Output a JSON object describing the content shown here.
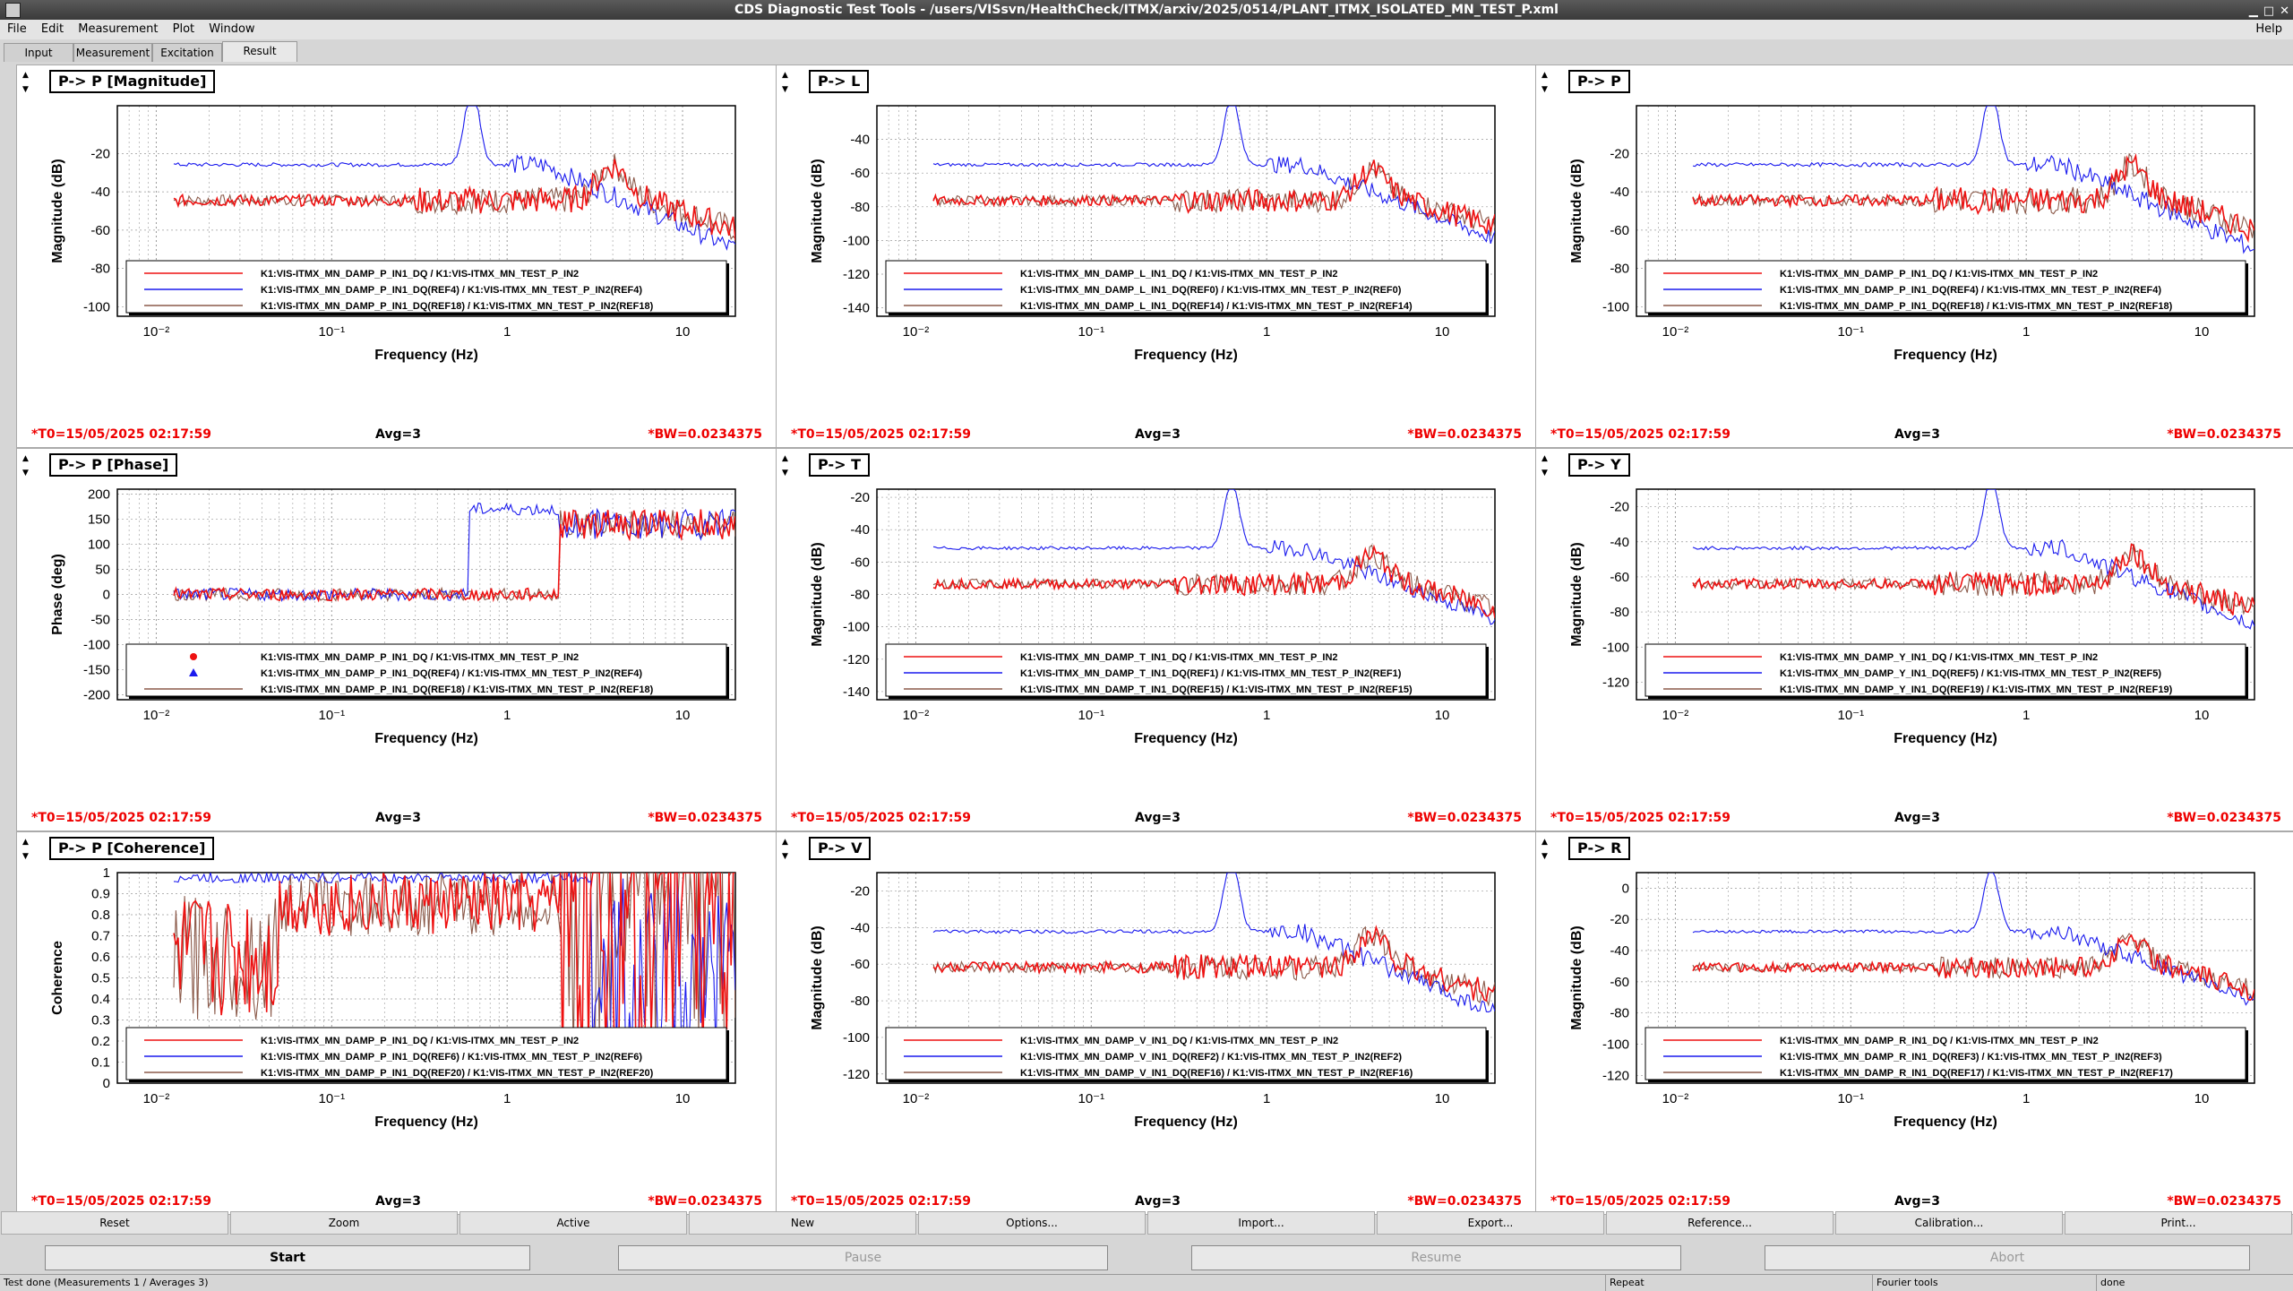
{
  "window": {
    "title": "CDS Diagnostic Test Tools - /users/VISsvn/HealthCheck/ITMX/arxiv/2025/0514/PLANT_ITMX_ISOLATED_MN_TEST_P.xml"
  },
  "menu": {
    "file": "File",
    "edit": "Edit",
    "measurement": "Measurement",
    "plot": "Plot",
    "window": "Window",
    "help": "Help"
  },
  "tabs": {
    "input": "Input",
    "measurement": "Measurement",
    "excitation": "Excitation",
    "result": "Result",
    "active": "Result"
  },
  "footer": {
    "t0": "*T0=15/05/2025 02:17:59",
    "avg": "Avg=3",
    "bw": "*BW=0.0234375"
  },
  "common": {
    "xlabel": "Frequency (Hz)",
    "xticks": [
      "10⁻²",
      "10⁻¹",
      "1",
      "10"
    ]
  },
  "colors": {
    "primary": "#ee1111",
    "reference_a": "#1a1aee",
    "reference_b": "#8b5a4a"
  },
  "panels": [
    {
      "title": "P-> P [Magnitude]",
      "ylabel": "Magnitude (dB)",
      "ylim": [
        -105,
        5
      ],
      "yticks": [
        "-20",
        "-40",
        "-60",
        "-80",
        "-100"
      ],
      "legend": [
        "K1:VIS-ITMX_MN_DAMP_P_IN1_DQ / K1:VIS-ITMX_MN_TEST_P_IN2",
        "K1:VIS-ITMX_MN_DAMP_P_IN1_DQ(REF4) / K1:VIS-ITMX_MN_TEST_P_IN2(REF4)",
        "K1:VIS-ITMX_MN_DAMP_P_IN1_DQ(REF18) / K1:VIS-ITMX_MN_TEST_P_IN2(REF18)"
      ]
    },
    {
      "title": "P-> L",
      "ylabel": "Magnitude (dB)",
      "ylim": [
        -145,
        -20
      ],
      "yticks": [
        "-40",
        "-60",
        "-80",
        "-100",
        "-120",
        "-140"
      ],
      "legend": [
        "K1:VIS-ITMX_MN_DAMP_L_IN1_DQ / K1:VIS-ITMX_MN_TEST_P_IN2",
        "K1:VIS-ITMX_MN_DAMP_L_IN1_DQ(REF0) / K1:VIS-ITMX_MN_TEST_P_IN2(REF0)",
        "K1:VIS-ITMX_MN_DAMP_L_IN1_DQ(REF14) / K1:VIS-ITMX_MN_TEST_P_IN2(REF14)"
      ]
    },
    {
      "title": "P-> P",
      "ylabel": "Magnitude (dB)",
      "ylim": [
        -105,
        5
      ],
      "yticks": [
        "-20",
        "-40",
        "-60",
        "-80",
        "-100"
      ],
      "legend": [
        "K1:VIS-ITMX_MN_DAMP_P_IN1_DQ / K1:VIS-ITMX_MN_TEST_P_IN2",
        "K1:VIS-ITMX_MN_DAMP_P_IN1_DQ(REF4) / K1:VIS-ITMX_MN_TEST_P_IN2(REF4)",
        "K1:VIS-ITMX_MN_DAMP_P_IN1_DQ(REF18) / K1:VIS-ITMX_MN_TEST_P_IN2(REF18)"
      ]
    },
    {
      "title": "P-> P [Phase]",
      "ylabel": "Phase (deg)",
      "ylim": [
        -210,
        210
      ],
      "yticks": [
        "200",
        "150",
        "100",
        "50",
        "0",
        "-50",
        "-100",
        "-150",
        "-200"
      ],
      "legend": [
        "K1:VIS-ITMX_MN_DAMP_P_IN1_DQ / K1:VIS-ITMX_MN_TEST_P_IN2",
        "K1:VIS-ITMX_MN_DAMP_P_IN1_DQ(REF4) / K1:VIS-ITMX_MN_TEST_P_IN2(REF4)",
        "K1:VIS-ITMX_MN_DAMP_P_IN1_DQ(REF18) / K1:VIS-ITMX_MN_TEST_P_IN2(REF18)"
      ]
    },
    {
      "title": "P-> T",
      "ylabel": "Magnitude (dB)",
      "ylim": [
        -145,
        -15
      ],
      "yticks": [
        "-20",
        "-40",
        "-60",
        "-80",
        "-100",
        "-120",
        "-140"
      ],
      "legend": [
        "K1:VIS-ITMX_MN_DAMP_T_IN1_DQ / K1:VIS-ITMX_MN_TEST_P_IN2",
        "K1:VIS-ITMX_MN_DAMP_T_IN1_DQ(REF1) / K1:VIS-ITMX_MN_TEST_P_IN2(REF1)",
        "K1:VIS-ITMX_MN_DAMP_T_IN1_DQ(REF15) / K1:VIS-ITMX_MN_TEST_P_IN2(REF15)"
      ]
    },
    {
      "title": "P-> Y",
      "ylabel": "Magnitude (dB)",
      "ylim": [
        -130,
        -10
      ],
      "yticks": [
        "-20",
        "-40",
        "-60",
        "-80",
        "-100",
        "-120"
      ],
      "legend": [
        "K1:VIS-ITMX_MN_DAMP_Y_IN1_DQ / K1:VIS-ITMX_MN_TEST_P_IN2",
        "K1:VIS-ITMX_MN_DAMP_Y_IN1_DQ(REF5) / K1:VIS-ITMX_MN_TEST_P_IN2(REF5)",
        "K1:VIS-ITMX_MN_DAMP_Y_IN1_DQ(REF19) / K1:VIS-ITMX_MN_TEST_P_IN2(REF19)"
      ]
    },
    {
      "title": "P-> P [Coherence]",
      "ylabel": "Coherence",
      "ylim": [
        0,
        1
      ],
      "yticks": [
        "1",
        "0.9",
        "0.8",
        "0.7",
        "0.6",
        "0.5",
        "0.4",
        "0.3",
        "0.2",
        "0.1",
        "0"
      ],
      "legend": [
        "K1:VIS-ITMX_MN_DAMP_P_IN1_DQ / K1:VIS-ITMX_MN_TEST_P_IN2",
        "K1:VIS-ITMX_MN_DAMP_P_IN1_DQ(REF6) / K1:VIS-ITMX_MN_TEST_P_IN2(REF6)",
        "K1:VIS-ITMX_MN_DAMP_P_IN1_DQ(REF20) / K1:VIS-ITMX_MN_TEST_P_IN2(REF20)"
      ]
    },
    {
      "title": "P-> V",
      "ylabel": "Magnitude (dB)",
      "ylim": [
        -125,
        -10
      ],
      "yticks": [
        "-20",
        "-40",
        "-60",
        "-80",
        "-100",
        "-120"
      ],
      "legend": [
        "K1:VIS-ITMX_MN_DAMP_V_IN1_DQ / K1:VIS-ITMX_MN_TEST_P_IN2",
        "K1:VIS-ITMX_MN_DAMP_V_IN1_DQ(REF2) / K1:VIS-ITMX_MN_TEST_P_IN2(REF2)",
        "K1:VIS-ITMX_MN_DAMP_V_IN1_DQ(REF16) / K1:VIS-ITMX_MN_TEST_P_IN2(REF16)"
      ]
    },
    {
      "title": "P-> R",
      "ylabel": "Magnitude (dB)",
      "ylim": [
        -125,
        10
      ],
      "yticks": [
        "0",
        "-20",
        "-40",
        "-60",
        "-80",
        "-100",
        "-120"
      ],
      "legend": [
        "K1:VIS-ITMX_MN_DAMP_R_IN1_DQ / K1:VIS-ITMX_MN_TEST_P_IN2",
        "K1:VIS-ITMX_MN_DAMP_R_IN1_DQ(REF3) / K1:VIS-ITMX_MN_TEST_P_IN2(REF3)",
        "K1:VIS-ITMX_MN_DAMP_R_IN1_DQ(REF17) / K1:VIS-ITMX_MN_TEST_P_IN2(REF17)"
      ]
    }
  ],
  "buttons_row1": [
    "Reset",
    "Zoom",
    "Active",
    "New",
    "Options...",
    "Import...",
    "Export...",
    "Reference...",
    "Calibration...",
    "Print..."
  ],
  "buttons_row2": {
    "start": "Start",
    "pause": "Pause",
    "resume": "Resume",
    "abort": "Abort"
  },
  "status": {
    "message": "Test done (Measurements 1 / Averages 3)",
    "repeat": "Repeat",
    "fourier": "Fourier tools",
    "done": "done"
  }
}
